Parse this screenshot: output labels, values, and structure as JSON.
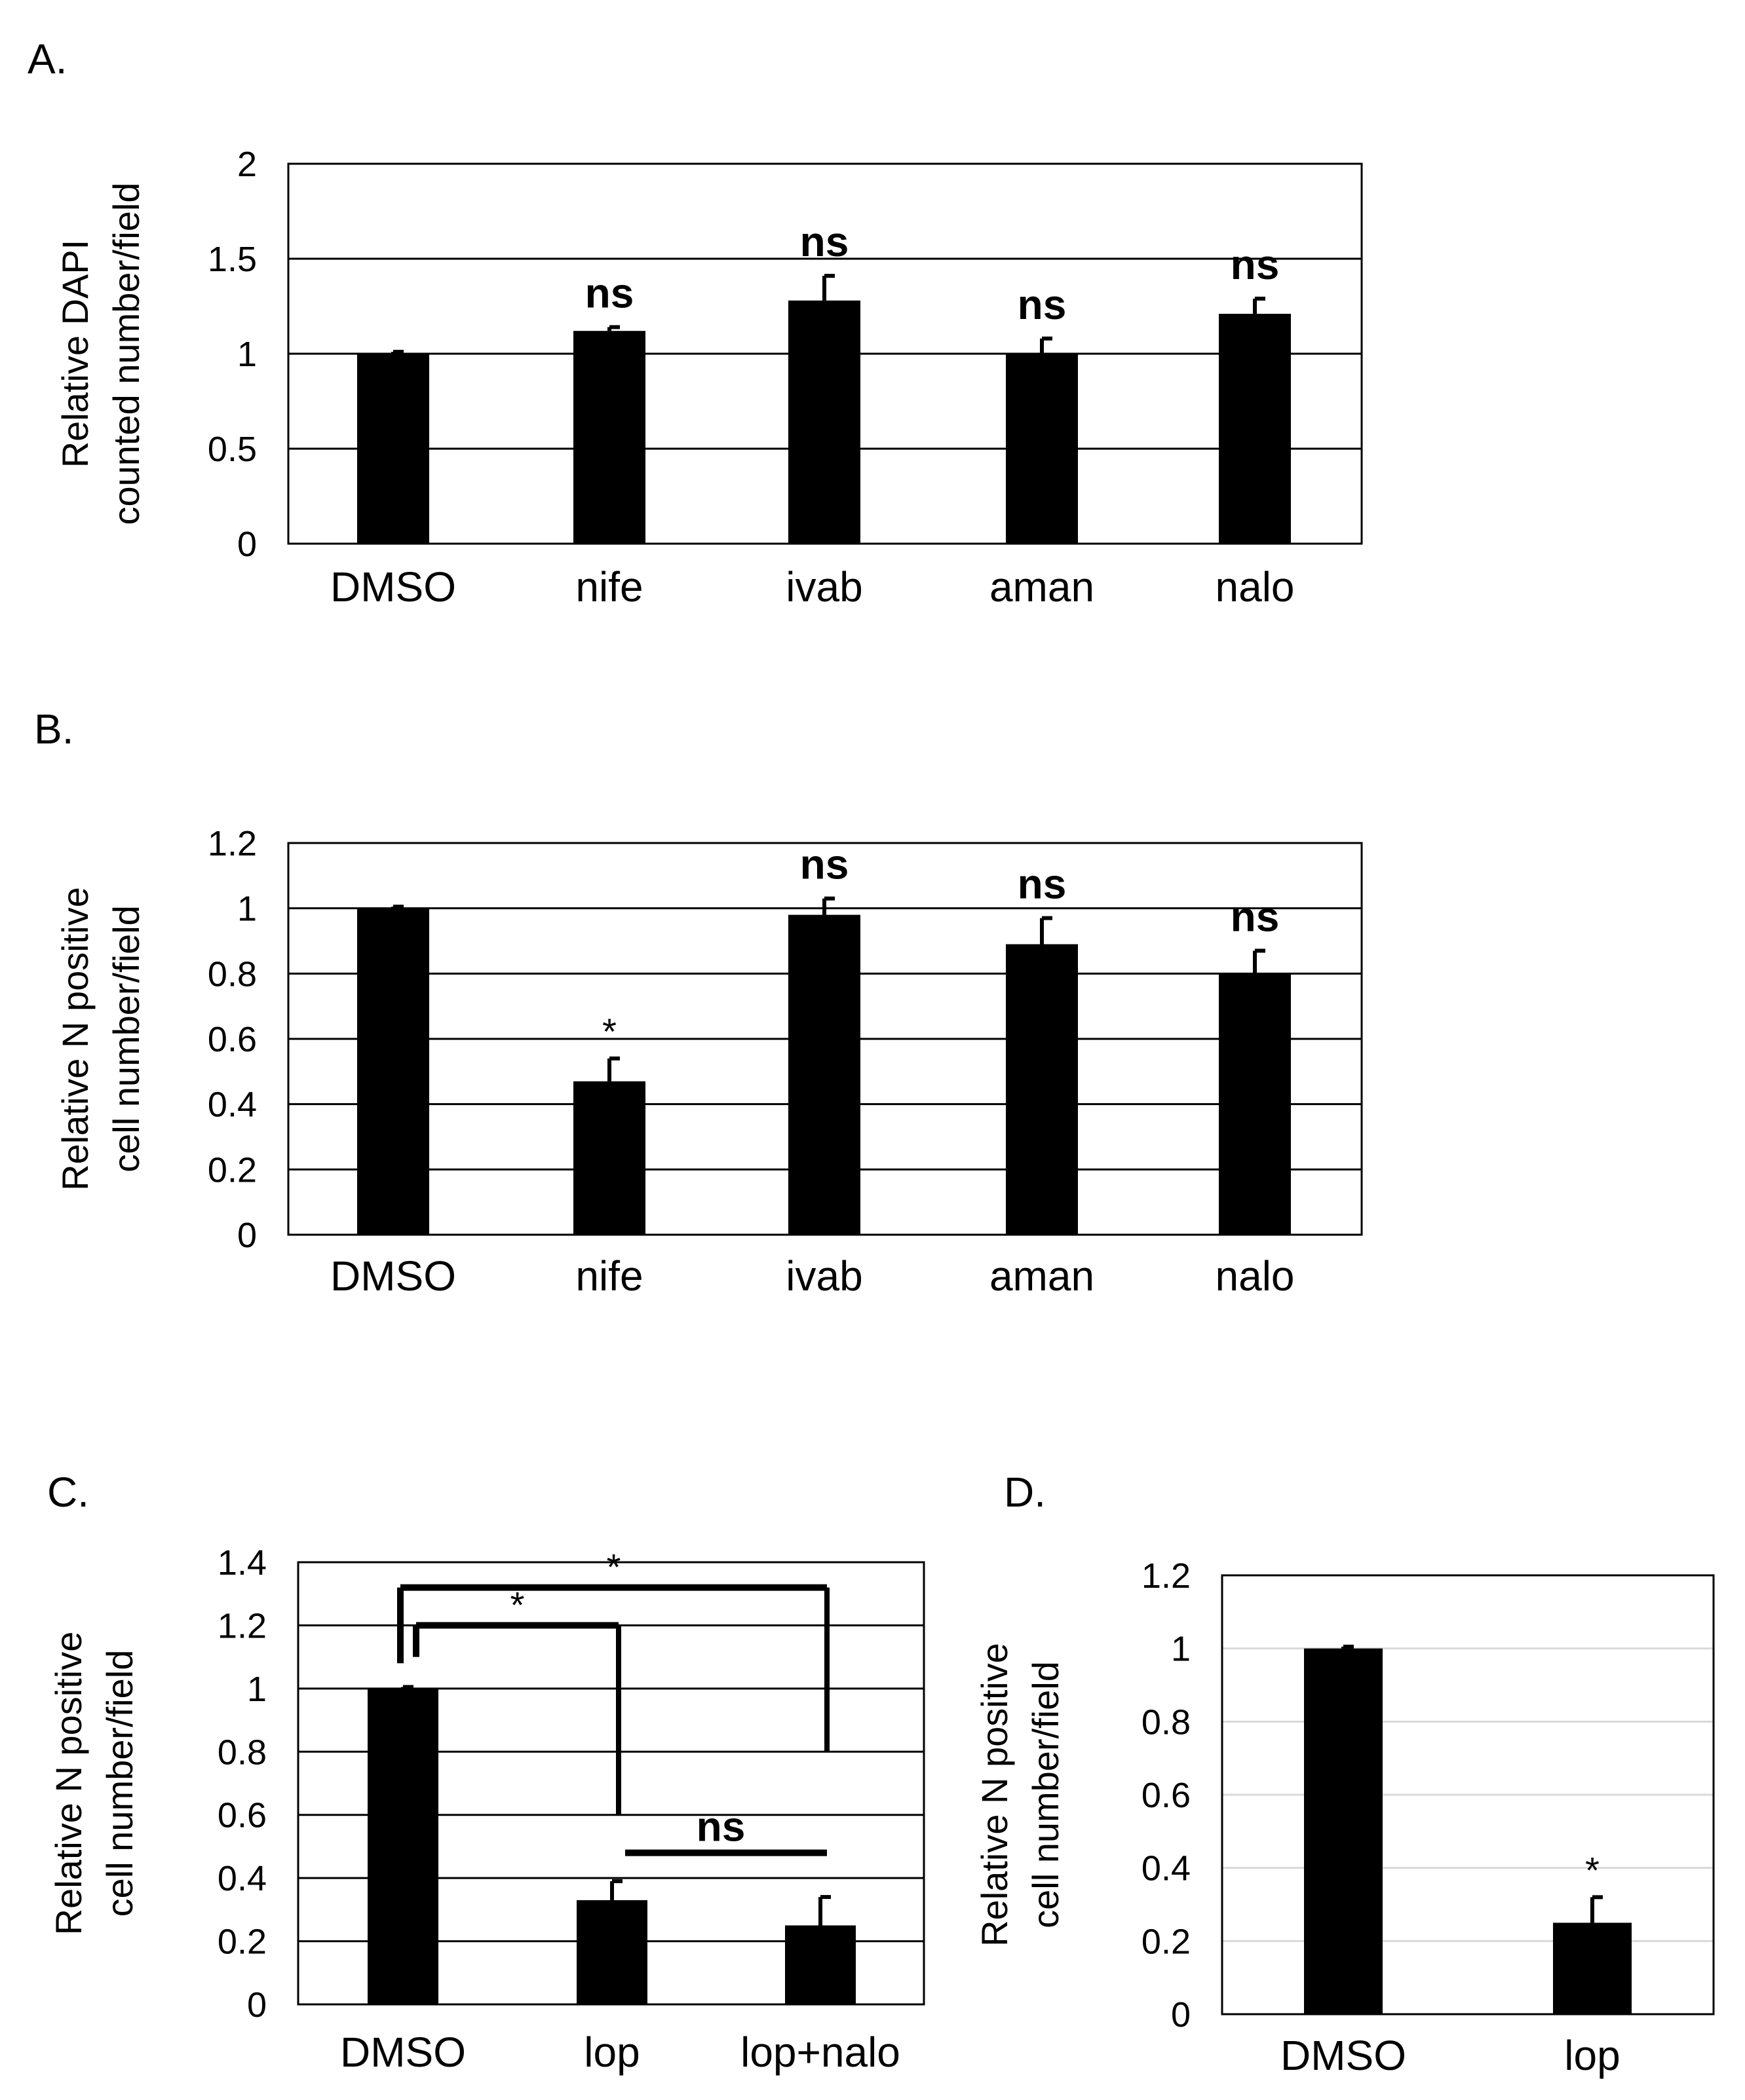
{
  "figure": {
    "accent": "#000000"
  },
  "chart_data": [
    {
      "panel": "A.",
      "type": "bar",
      "categories": [
        "DMSO",
        "nife",
        "ivab",
        "aman",
        "nalo"
      ],
      "values": [
        1.0,
        1.12,
        1.28,
        1.0,
        1.21
      ],
      "errors": [
        0.01,
        0.02,
        0.13,
        0.08,
        0.08
      ],
      "annotations": [
        "",
        "ns",
        "ns",
        "ns",
        "ns"
      ],
      "ylabel_lines": [
        "Relative DAPI",
        "counted number/field"
      ],
      "ylim": [
        0,
        2
      ],
      "yticks": [
        0,
        0.5,
        1,
        1.5,
        2
      ],
      "ytick_labels": [
        "0",
        "0.5",
        "1",
        "1.5",
        "2"
      ],
      "grid": true,
      "gridline_color": "#000000",
      "bar_color": "#000000"
    },
    {
      "panel": "B.",
      "type": "bar",
      "categories": [
        "DMSO",
        "nife",
        "ivab",
        "aman",
        "nalo"
      ],
      "values": [
        1.0,
        0.47,
        0.98,
        0.89,
        0.8
      ],
      "errors": [
        0.005,
        0.07,
        0.05,
        0.08,
        0.07
      ],
      "annotations": [
        "",
        "*",
        "ns",
        "ns",
        "ns"
      ],
      "ylabel_lines": [
        "Relative N positive",
        "cell number/field"
      ],
      "ylim": [
        0,
        1.2
      ],
      "yticks": [
        0,
        0.2,
        0.4,
        0.6,
        0.8,
        1,
        1.2
      ],
      "ytick_labels": [
        "0",
        "0.2",
        "0.4",
        "0.6",
        "0.8",
        "1",
        "1.2"
      ],
      "grid": true,
      "gridline_color": "#000000",
      "bar_color": "#000000"
    },
    {
      "panel": "C.",
      "type": "bar",
      "categories": [
        "DMSO",
        "lop",
        "lop+nalo"
      ],
      "values": [
        1.0,
        0.33,
        0.25
      ],
      "errors": [
        0.005,
        0.06,
        0.09
      ],
      "annotations": [
        "",
        "",
        ""
      ],
      "ylabel_lines": [
        "Relative N positive",
        "cell number/field"
      ],
      "ylim": [
        0,
        1.4
      ],
      "yticks": [
        0,
        0.2,
        0.4,
        0.6,
        0.8,
        1,
        1.2,
        1.4
      ],
      "ytick_labels": [
        "0",
        "0.2",
        "0.4",
        "0.6",
        "0.8",
        "1",
        "1.2",
        "1.4"
      ],
      "grid": true,
      "gridline_color": "#000000",
      "bar_color": "#000000",
      "brackets": [
        {
          "from": 0,
          "to": 2,
          "y": 1.32,
          "from_drop": 1.08,
          "to_drop": 0.8,
          "label": "*"
        },
        {
          "from": 0,
          "to": 1,
          "y": 1.2,
          "from_drop": 1.1,
          "to_drop": 0.6,
          "label": "*"
        },
        {
          "from": 1,
          "to": 2,
          "y": 0.48,
          "label": "ns"
        }
      ]
    },
    {
      "panel": "D.",
      "type": "bar",
      "categories": [
        "DMSO",
        "lop"
      ],
      "values": [
        1.0,
        0.25
      ],
      "errors": [
        0.005,
        0.07
      ],
      "annotations": [
        "",
        "*"
      ],
      "ylabel_lines": [
        "Relative N positive",
        "cell number/field"
      ],
      "ylim": [
        0,
        1.2
      ],
      "yticks": [
        0,
        0.2,
        0.4,
        0.6,
        0.8,
        1,
        1.2
      ],
      "ytick_labels": [
        "0",
        "0.2",
        "0.4",
        "0.6",
        "0.8",
        "1",
        "1.2"
      ],
      "grid": true,
      "gridline_color": "#d9d9d9",
      "bar_color": "#000000"
    }
  ]
}
